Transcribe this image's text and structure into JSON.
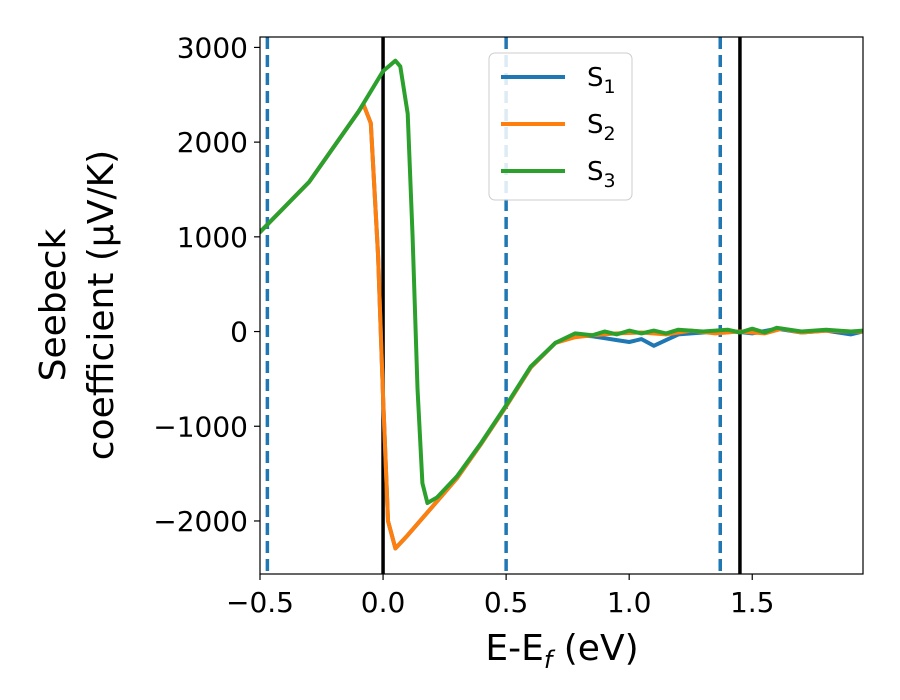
{
  "chart_data": {
    "type": "line",
    "xlabel_main": "E-E",
    "xlabel_sub": "f",
    "xlabel_unit": " (eV)",
    "ylabel_line1": "Seebeck",
    "ylabel_line2": "coefficient  (μV/K)",
    "xlim": [
      -0.5,
      1.95
    ],
    "ylim": [
      -2560,
      3110
    ],
    "x_ticks": [
      -0.5,
      0.0,
      0.5,
      1.0,
      1.5
    ],
    "x_tick_labels": [
      "−0.5",
      "0.0",
      "0.5",
      "1.0",
      "1.5"
    ],
    "y_ticks": [
      -2000,
      -1000,
      0,
      1000,
      2000,
      3000
    ],
    "y_tick_labels": [
      "−2000",
      "−1000",
      "0",
      "1000",
      "2000",
      "3000"
    ],
    "grid": false,
    "legend_position": "top-center",
    "vertical_lines": [
      {
        "x": -0.47,
        "style": "dashed",
        "color": "#1f77b4"
      },
      {
        "x": 0.0,
        "style": "solid",
        "color": "#000000"
      },
      {
        "x": 0.5,
        "style": "dashed",
        "color": "#1f77b4"
      },
      {
        "x": 1.37,
        "style": "dashed",
        "color": "#1f77b4"
      },
      {
        "x": 1.45,
        "style": "solid",
        "color": "#000000"
      }
    ],
    "series": [
      {
        "name": "S",
        "subscript": "1",
        "color": "#1f77b4",
        "points": [
          [
            -0.5,
            1050
          ],
          [
            -0.3,
            1580
          ],
          [
            -0.1,
            2320
          ],
          [
            -0.08,
            2400
          ],
          [
            -0.05,
            2200
          ],
          [
            -0.02,
            800
          ],
          [
            0.0,
            -700
          ],
          [
            0.02,
            -2000
          ],
          [
            0.05,
            -2290
          ],
          [
            0.1,
            -2150
          ],
          [
            0.2,
            -1850
          ],
          [
            0.3,
            -1550
          ],
          [
            0.4,
            -1180
          ],
          [
            0.5,
            -790
          ],
          [
            0.6,
            -380
          ],
          [
            0.7,
            -120
          ],
          [
            0.78,
            -40
          ],
          [
            0.85,
            -50
          ],
          [
            0.9,
            -70
          ],
          [
            0.95,
            -90
          ],
          [
            1.0,
            -110
          ],
          [
            1.05,
            -80
          ],
          [
            1.1,
            -150
          ],
          [
            1.15,
            -90
          ],
          [
            1.2,
            -30
          ],
          [
            1.3,
            -10
          ],
          [
            1.4,
            10
          ],
          [
            1.5,
            -20
          ],
          [
            1.6,
            30
          ],
          [
            1.7,
            -10
          ],
          [
            1.8,
            10
          ],
          [
            1.9,
            -30
          ],
          [
            1.95,
            0
          ]
        ]
      },
      {
        "name": "S",
        "subscript": "2",
        "color": "#ff7f0e",
        "points": [
          [
            -0.5,
            1050
          ],
          [
            -0.3,
            1580
          ],
          [
            -0.1,
            2320
          ],
          [
            -0.08,
            2400
          ],
          [
            -0.05,
            2200
          ],
          [
            -0.02,
            800
          ],
          [
            0.0,
            -700
          ],
          [
            0.02,
            -2000
          ],
          [
            0.05,
            -2290
          ],
          [
            0.1,
            -2150
          ],
          [
            0.2,
            -1850
          ],
          [
            0.3,
            -1550
          ],
          [
            0.4,
            -1180
          ],
          [
            0.5,
            -790
          ],
          [
            0.6,
            -380
          ],
          [
            0.7,
            -120
          ],
          [
            0.78,
            -60
          ],
          [
            0.85,
            -40
          ],
          [
            0.95,
            -20
          ],
          [
            1.05,
            -10
          ],
          [
            1.15,
            -30
          ],
          [
            1.25,
            10
          ],
          [
            1.35,
            -20
          ],
          [
            1.45,
            0
          ],
          [
            1.55,
            -20
          ],
          [
            1.62,
            30
          ],
          [
            1.7,
            -10
          ],
          [
            1.8,
            10
          ],
          [
            1.9,
            0
          ],
          [
            1.95,
            0
          ]
        ]
      },
      {
        "name": "S",
        "subscript": "3",
        "color": "#2ca02c",
        "points": [
          [
            -0.5,
            1050
          ],
          [
            -0.3,
            1580
          ],
          [
            -0.1,
            2320
          ],
          [
            0.0,
            2750
          ],
          [
            0.05,
            2860
          ],
          [
            0.07,
            2800
          ],
          [
            0.1,
            2300
          ],
          [
            0.12,
            1000
          ],
          [
            0.14,
            -600
          ],
          [
            0.16,
            -1600
          ],
          [
            0.18,
            -1810
          ],
          [
            0.22,
            -1750
          ],
          [
            0.3,
            -1530
          ],
          [
            0.4,
            -1170
          ],
          [
            0.5,
            -780
          ],
          [
            0.6,
            -370
          ],
          [
            0.7,
            -120
          ],
          [
            0.78,
            -20
          ],
          [
            0.85,
            -40
          ],
          [
            0.9,
            0
          ],
          [
            0.95,
            -30
          ],
          [
            1.0,
            10
          ],
          [
            1.05,
            -20
          ],
          [
            1.1,
            10
          ],
          [
            1.15,
            -20
          ],
          [
            1.2,
            20
          ],
          [
            1.3,
            0
          ],
          [
            1.4,
            20
          ],
          [
            1.45,
            -10
          ],
          [
            1.5,
            30
          ],
          [
            1.55,
            -10
          ],
          [
            1.6,
            40
          ],
          [
            1.7,
            0
          ],
          [
            1.8,
            20
          ],
          [
            1.9,
            0
          ],
          [
            1.95,
            10
          ]
        ]
      }
    ]
  }
}
